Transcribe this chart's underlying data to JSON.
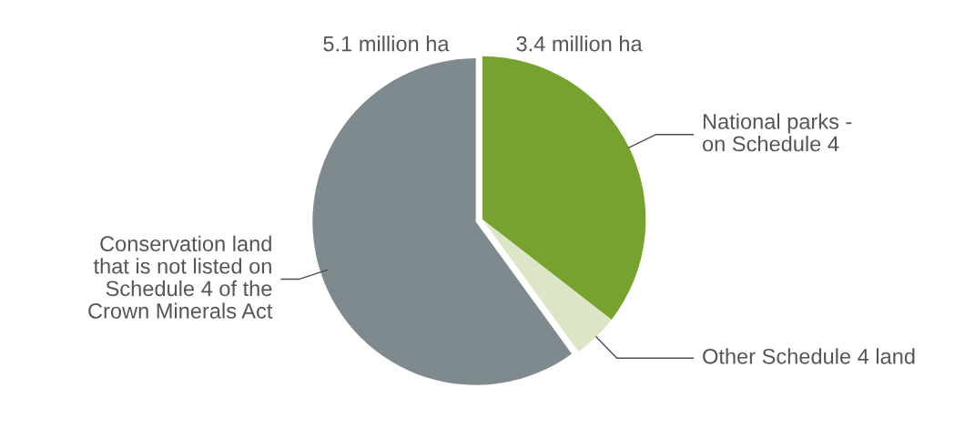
{
  "chart_data": {
    "type": "pie",
    "categories": [
      "National parks -\non Schedule 4",
      "Other Schedule 4 land",
      "Conservation land\nthat is not listed on\nSchedule 4 of the\nCrown Minerals Act"
    ],
    "values": [
      35.5,
      4.5,
      60
    ],
    "colors": [
      "#78a22f",
      "#dce6c7",
      "#7f8a8f"
    ],
    "annotations": [
      "5.1 million ha",
      "3.4 million ha"
    ]
  }
}
